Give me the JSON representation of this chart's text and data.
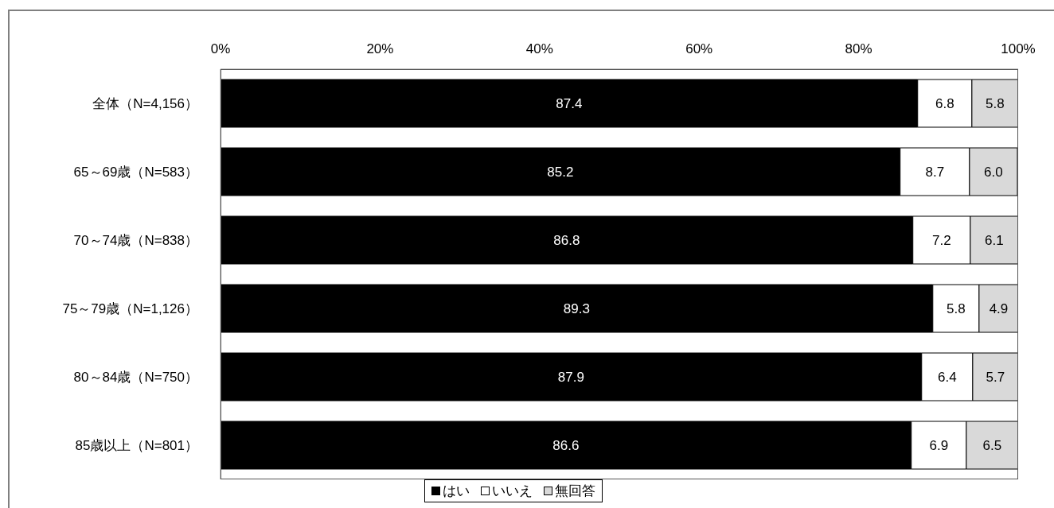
{
  "chart_data": {
    "type": "bar",
    "orientation": "horizontal",
    "stacked": true,
    "categories": [
      "全体（N=4,156）",
      "65～69歳（N=583）",
      "70～74歳（N=838）",
      "75～79歳（N=1,126）",
      "80～84歳（N=750）",
      "85歳以上（N=801）"
    ],
    "series": [
      {
        "name": "はい",
        "color": "#000000",
        "values": [
          87.4,
          85.2,
          86.8,
          89.3,
          87.9,
          86.6
        ],
        "value_labels": [
          "87.4",
          "85.2",
          "86.8",
          "89.3",
          "87.9",
          "86.6"
        ]
      },
      {
        "name": "いいえ",
        "color": "#ffffff",
        "values": [
          6.8,
          8.7,
          7.2,
          5.8,
          6.4,
          6.9
        ],
        "value_labels": [
          "6.8",
          "8.7",
          "7.2",
          "5.8",
          "6.4",
          "6.9"
        ]
      },
      {
        "name": "無回答",
        "color": "#d9d9d9",
        "values": [
          5.8,
          6.0,
          6.1,
          4.9,
          5.7,
          6.5
        ],
        "value_labels": [
          "5.8",
          "6.0",
          "6.1",
          "4.9",
          "5.7",
          "6.5"
        ]
      }
    ],
    "xlim": [
      0,
      100
    ],
    "xticks": [
      {
        "value": 0,
        "label": "0%"
      },
      {
        "value": 20,
        "label": "20%"
      },
      {
        "value": 40,
        "label": "40%"
      },
      {
        "value": 60,
        "label": "60%"
      },
      {
        "value": 80,
        "label": "80%"
      },
      {
        "value": 100,
        "label": "100%"
      }
    ],
    "legend": "bottom"
  }
}
